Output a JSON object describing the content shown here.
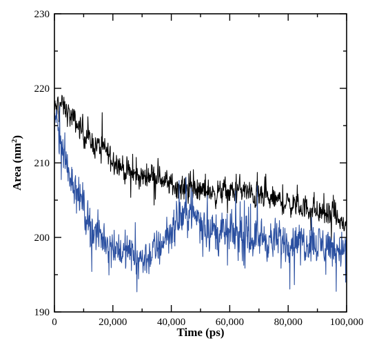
{
  "chart_data": {
    "type": "line",
    "title": "",
    "xlabel": "Time (ps)",
    "ylabel_text": "Area (nm",
    "ylabel_sup": "2",
    "ylabel_close": ")",
    "xlim": [
      0,
      100000
    ],
    "ylim": [
      190,
      230
    ],
    "grid": false,
    "x_ticks": [
      0,
      20000,
      40000,
      60000,
      80000,
      100000
    ],
    "x_tick_labels": [
      "0",
      "20,000",
      "40,000",
      "60,000",
      "80,000",
      "100,000"
    ],
    "y_ticks": [
      190,
      200,
      210,
      220,
      230
    ],
    "y_tick_labels": [
      "190",
      "200",
      "210",
      "220",
      "230"
    ],
    "series": [
      {
        "color": "#000000",
        "x": [
          0,
          2000,
          4000,
          6000,
          8000,
          10000,
          12000,
          14000,
          16000,
          18000,
          20000,
          22000,
          24000,
          26000,
          28000,
          30000,
          32000,
          34000,
          36000,
          38000,
          40000,
          42000,
          44000,
          46000,
          48000,
          50000,
          52000,
          54000,
          56000,
          58000,
          60000,
          62000,
          64000,
          66000,
          68000,
          70000,
          72000,
          74000,
          76000,
          78000,
          80000,
          82000,
          84000,
          86000,
          88000,
          90000,
          92000,
          94000,
          96000,
          98000,
          100000
        ],
        "y": [
          217,
          218,
          217,
          216,
          215,
          214,
          213,
          212.5,
          212,
          211.5,
          210.5,
          210,
          209,
          208.5,
          208.2,
          208,
          208.5,
          208.5,
          208,
          207.5,
          207,
          207,
          206.5,
          206.5,
          206.5,
          206,
          206.5,
          206,
          206,
          206.2,
          206,
          206.3,
          206.5,
          206,
          205.5,
          205.5,
          205.2,
          205,
          205,
          204.8,
          204.5,
          204.5,
          204,
          204,
          203.8,
          203.5,
          203.2,
          203,
          203,
          202,
          201.5
        ],
        "noise": 1.9
      },
      {
        "color": "#2a4fa0",
        "x": [
          0,
          2000,
          4000,
          6000,
          8000,
          10000,
          12000,
          14000,
          16000,
          18000,
          20000,
          22000,
          24000,
          26000,
          28000,
          30000,
          32000,
          34000,
          36000,
          38000,
          40000,
          42000,
          44000,
          46000,
          48000,
          50000,
          52000,
          54000,
          56000,
          58000,
          60000,
          62000,
          64000,
          66000,
          68000,
          70000,
          72000,
          74000,
          76000,
          78000,
          80000,
          82000,
          84000,
          86000,
          88000,
          90000,
          92000,
          94000,
          96000,
          98000,
          100000
        ],
        "y": [
          217,
          213,
          210,
          208,
          206,
          204,
          202,
          200.5,
          200,
          199.5,
          199,
          198.5,
          198,
          198,
          197.5,
          197,
          197.5,
          198,
          199,
          200,
          201,
          202,
          203,
          203.5,
          203,
          202.5,
          201.5,
          201,
          200.5,
          200.5,
          200.5,
          200.5,
          200,
          200,
          200,
          200,
          200,
          199.5,
          199.5,
          199.5,
          199.5,
          199.5,
          199.5,
          199.5,
          199.5,
          199,
          199,
          199,
          198.5,
          198.5,
          198.5
        ],
        "noise": 3.0
      }
    ]
  }
}
